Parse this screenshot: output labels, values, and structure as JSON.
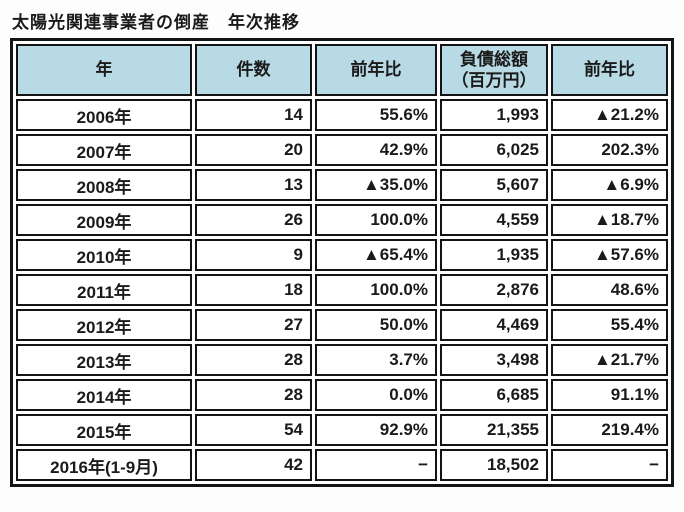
{
  "title": "太陽光関連事業者の倒産　年次推移",
  "colors": {
    "header_bg": "#b7dae4",
    "border": "#141414",
    "text": "#1a1a1a",
    "page_bg": "#fdfdfd"
  },
  "chart_data": {
    "type": "table",
    "title": "太陽光関連事業者の倒産　年次推移",
    "columns": [
      "年",
      "件数",
      "前年比",
      "負債総額（百万円）",
      "前年比"
    ],
    "column_header_lines": {
      "debt_line1": "負債総額",
      "debt_line2": "（百万円）"
    },
    "negative_marker": "▲",
    "rows": [
      [
        "2006年",
        "14",
        "55.6%",
        "1,993",
        "▲21.2%"
      ],
      [
        "2007年",
        "20",
        "42.9%",
        "6,025",
        "202.3%"
      ],
      [
        "2008年",
        "13",
        "▲35.0%",
        "5,607",
        "▲6.9%"
      ],
      [
        "2009年",
        "26",
        "100.0%",
        "4,559",
        "▲18.7%"
      ],
      [
        "2010年",
        "9",
        "▲65.4%",
        "1,935",
        "▲57.6%"
      ],
      [
        "2011年",
        "18",
        "100.0%",
        "2,876",
        "48.6%"
      ],
      [
        "2012年",
        "27",
        "50.0%",
        "4,469",
        "55.4%"
      ],
      [
        "2013年",
        "28",
        "3.7%",
        "3,498",
        "▲21.7%"
      ],
      [
        "2014年",
        "28",
        "0.0%",
        "6,685",
        "91.1%"
      ],
      [
        "2015年",
        "54",
        "92.9%",
        "21,355",
        "219.4%"
      ],
      [
        "2016年(1-9月)",
        "42",
        "−",
        "18,502",
        "−"
      ]
    ]
  }
}
